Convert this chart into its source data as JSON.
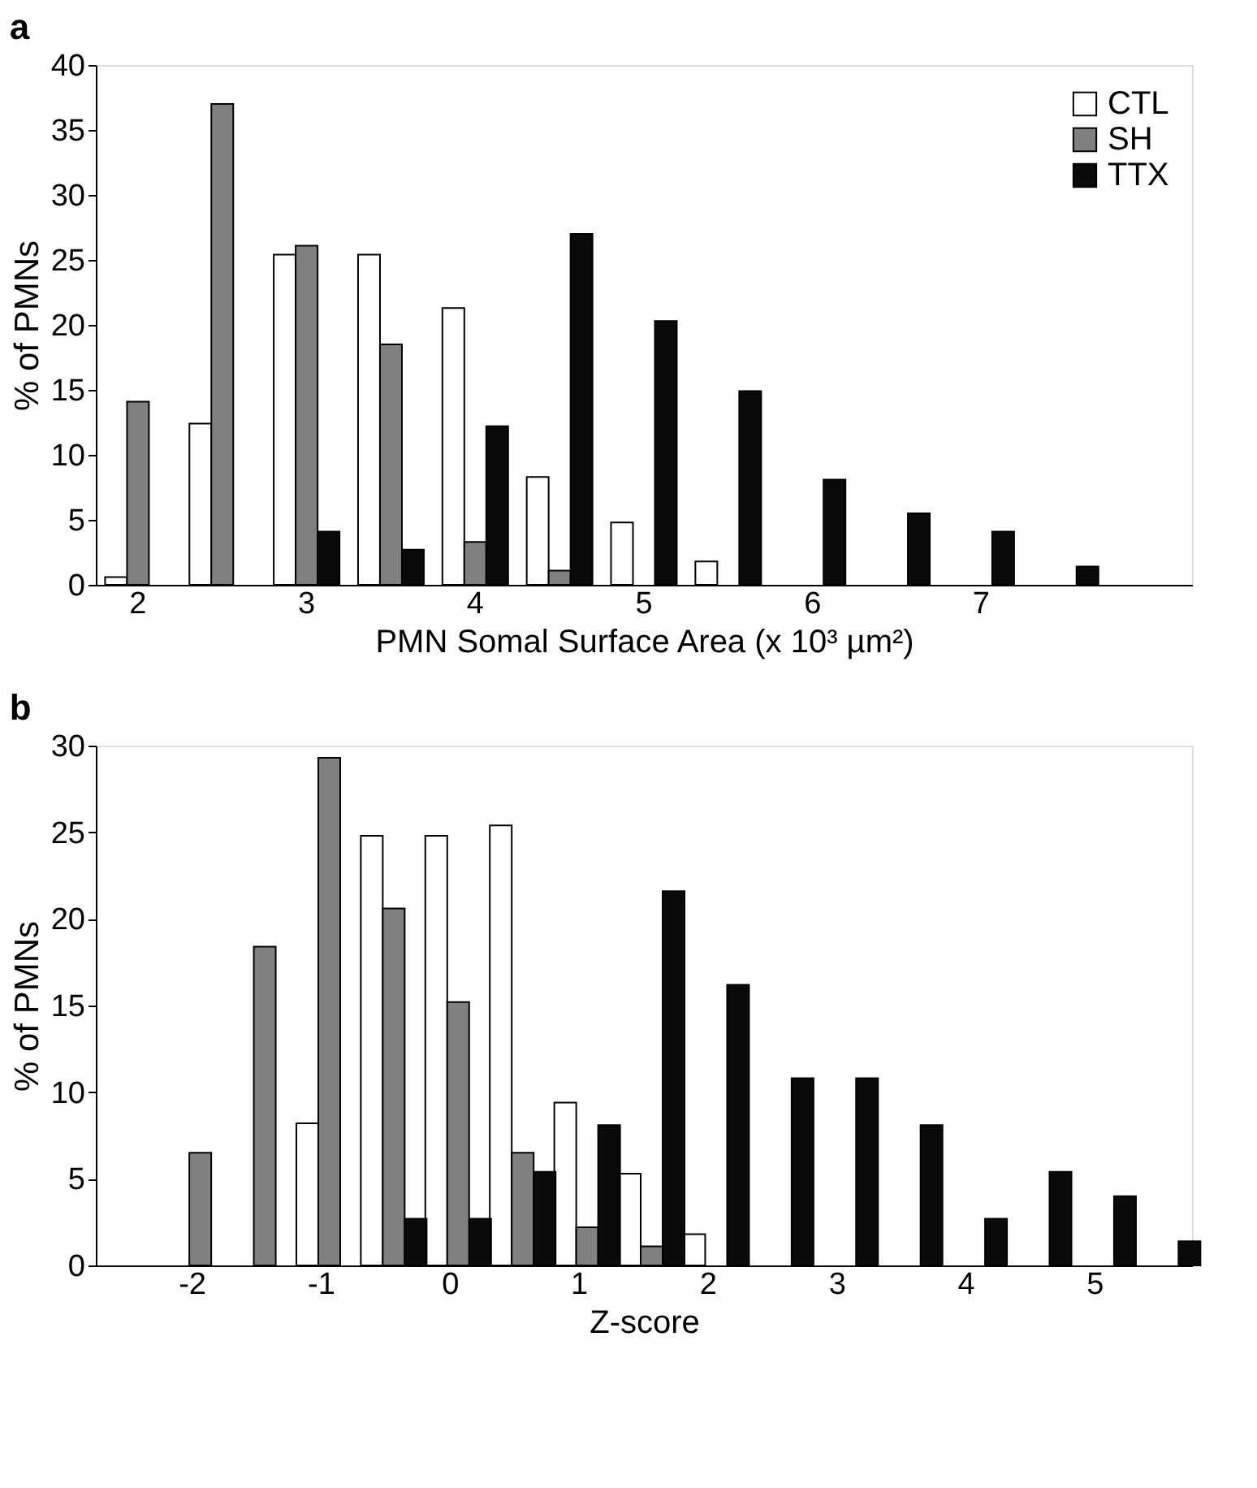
{
  "chart_data": [
    {
      "type": "bar",
      "title": "a",
      "xlabel": "PMN Somal Surface Area (x 10³ µm²)",
      "ylabel": "% of PMNs",
      "categories": [
        "2",
        null,
        "3",
        null,
        "4",
        null,
        "5",
        null,
        "6",
        null,
        "7",
        null,
        null
      ],
      "series": [
        {
          "name": "CTL",
          "color": "#ffffff",
          "values": [
            0.6,
            12.4,
            25.4,
            25.4,
            21.3,
            8.3,
            4.8,
            1.8,
            null,
            null,
            null,
            null,
            null
          ]
        },
        {
          "name": "SH",
          "color": "#808080",
          "values": [
            14.1,
            37.0,
            26.1,
            18.5,
            3.3,
            1.1,
            null,
            null,
            null,
            null,
            null,
            null,
            null
          ]
        },
        {
          "name": "TTX",
          "color": "#0a0a0a",
          "values": [
            null,
            null,
            4.1,
            2.7,
            12.2,
            27.0,
            20.3,
            14.9,
            8.1,
            5.5,
            4.1,
            1.4,
            null
          ]
        }
      ],
      "ylim": [
        0,
        40
      ],
      "yticks": [
        0,
        5,
        10,
        15,
        20,
        25,
        30,
        35,
        40
      ],
      "grid": false,
      "legend": "top right"
    },
    {
      "type": "bar",
      "title": "b",
      "xlabel": "Z-score",
      "ylabel": "% of PMNs",
      "categories": [
        null,
        "-2",
        null,
        "-1",
        null,
        "0",
        null,
        "1",
        null,
        "2",
        null,
        "3",
        null,
        "4",
        null,
        "5",
        null
      ],
      "series": [
        {
          "color": "#ffffff",
          "values": [
            null,
            null,
            null,
            8.2,
            24.8,
            24.8,
            25.4,
            9.4,
            5.3,
            1.8,
            null,
            null,
            null,
            null,
            null,
            null,
            null
          ]
        },
        {
          "color": "#808080",
          "values": [
            null,
            6.5,
            18.4,
            29.3,
            20.6,
            15.2,
            6.5,
            2.2,
            1.1,
            null,
            null,
            null,
            null,
            null,
            null,
            null,
            null
          ]
        },
        {
          "color": "#0a0a0a",
          "values": [
            null,
            null,
            null,
            null,
            2.7,
            2.7,
            5.4,
            8.1,
            21.6,
            16.2,
            10.8,
            10.8,
            8.1,
            2.7,
            5.4,
            4.0,
            1.4
          ]
        }
      ],
      "ylim": [
        0,
        30
      ],
      "yticks": [
        0,
        5,
        10,
        15,
        20,
        25,
        30
      ],
      "grid": false,
      "legend": false
    }
  ]
}
